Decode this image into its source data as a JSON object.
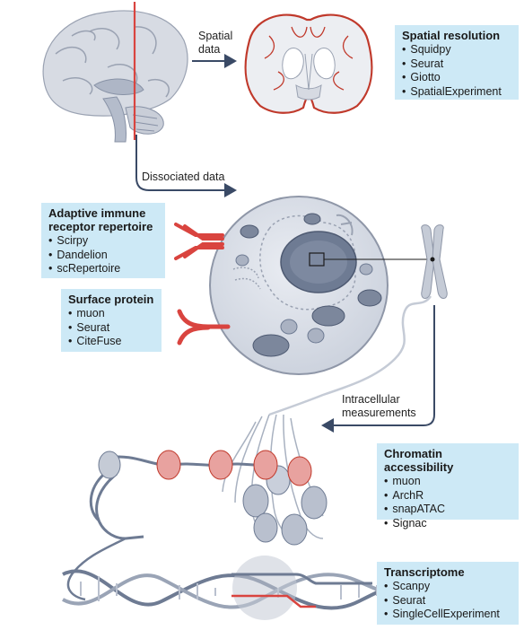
{
  "labels": {
    "spatial_data": [
      "Spatial",
      "data"
    ],
    "dissociated": "Dissociated data",
    "intracellular": [
      "Intracellular",
      "measurements"
    ]
  },
  "boxes": {
    "spatial": {
      "title": "Spatial resolution",
      "items": [
        "Squidpy",
        "Seurat",
        "Giotto",
        "SpatialExperiment"
      ]
    },
    "immune": {
      "title": [
        "Adaptive immune",
        "receptor repertoire"
      ],
      "items": [
        "Scirpy",
        "Dandelion",
        "scRepertoire"
      ]
    },
    "surface": {
      "title": "Surface protein",
      "items": [
        "muon",
        "Seurat",
        "CiteFuse"
      ]
    },
    "chromatin": {
      "title": "Chromatin accessibility",
      "items": [
        "muon",
        "ArchR",
        "snapATAC",
        "Signac"
      ]
    },
    "transcriptome": {
      "title": "Transcriptome",
      "items": [
        "Scanpy",
        "Seurat",
        "SingleCellExperiment"
      ]
    }
  },
  "colors": {
    "box_bg": "#cde9f6",
    "accent_red": "#d9443f",
    "arrow": "#3a4a66",
    "structure_gray": "#b9bfcc"
  }
}
